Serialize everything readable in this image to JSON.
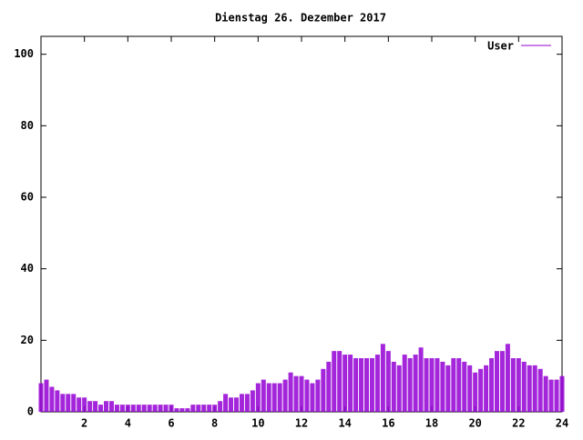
{
  "chart_data": {
    "type": "impulse",
    "title": "Dienstag 26. Dezember 2017",
    "x": [
      0,
      0.25,
      0.5,
      0.75,
      1,
      1.25,
      1.5,
      1.75,
      2,
      2.25,
      2.5,
      2.75,
      3,
      3.25,
      3.5,
      3.75,
      4,
      4.25,
      4.5,
      4.75,
      5,
      5.25,
      5.5,
      5.75,
      6,
      6.25,
      6.5,
      6.75,
      7,
      7.25,
      7.5,
      7.75,
      8,
      8.25,
      8.5,
      8.75,
      9,
      9.25,
      9.5,
      9.75,
      10,
      10.25,
      10.5,
      10.75,
      11,
      11.25,
      11.5,
      11.75,
      12,
      12.25,
      12.5,
      12.75,
      13,
      13.25,
      13.5,
      13.75,
      14,
      14.25,
      14.5,
      14.75,
      15,
      15.25,
      15.5,
      15.75,
      16,
      16.25,
      16.5,
      16.75,
      17,
      17.25,
      17.5,
      17.75,
      18,
      18.25,
      18.5,
      18.75,
      19,
      19.25,
      19.5,
      19.75,
      20,
      20.25,
      20.5,
      20.75,
      21,
      21.25,
      21.5,
      21.75,
      22,
      22.25,
      22.5,
      22.75,
      23,
      23.25,
      23.5,
      23.75,
      24
    ],
    "series": [
      {
        "name": "User",
        "color": "#9400d3",
        "values": [
          8,
          9,
          7,
          6,
          5,
          5,
          5,
          4,
          4,
          3,
          3,
          2,
          3,
          3,
          2,
          2,
          2,
          2,
          2,
          2,
          2,
          2,
          2,
          2,
          2,
          1,
          1,
          1,
          2,
          2,
          2,
          2,
          2,
          3,
          5,
          4,
          4,
          5,
          5,
          6,
          8,
          9,
          8,
          8,
          8,
          9,
          11,
          10,
          10,
          9,
          8,
          9,
          12,
          14,
          17,
          17,
          16,
          16,
          15,
          15,
          15,
          15,
          16,
          19,
          17,
          14,
          13,
          16,
          15,
          16,
          18,
          15,
          15,
          15,
          14,
          13,
          15,
          15,
          14,
          13,
          11,
          12,
          13,
          15,
          17,
          17,
          19,
          15,
          15,
          14,
          13,
          13,
          12,
          10,
          9,
          9,
          10
        ]
      }
    ],
    "xlim": [
      0,
      24
    ],
    "ylim": [
      0,
      105
    ],
    "xticks": [
      2,
      4,
      6,
      8,
      10,
      12,
      14,
      16,
      18,
      20,
      22,
      24
    ],
    "yticks": [
      0,
      20,
      40,
      60,
      80,
      100
    ]
  }
}
